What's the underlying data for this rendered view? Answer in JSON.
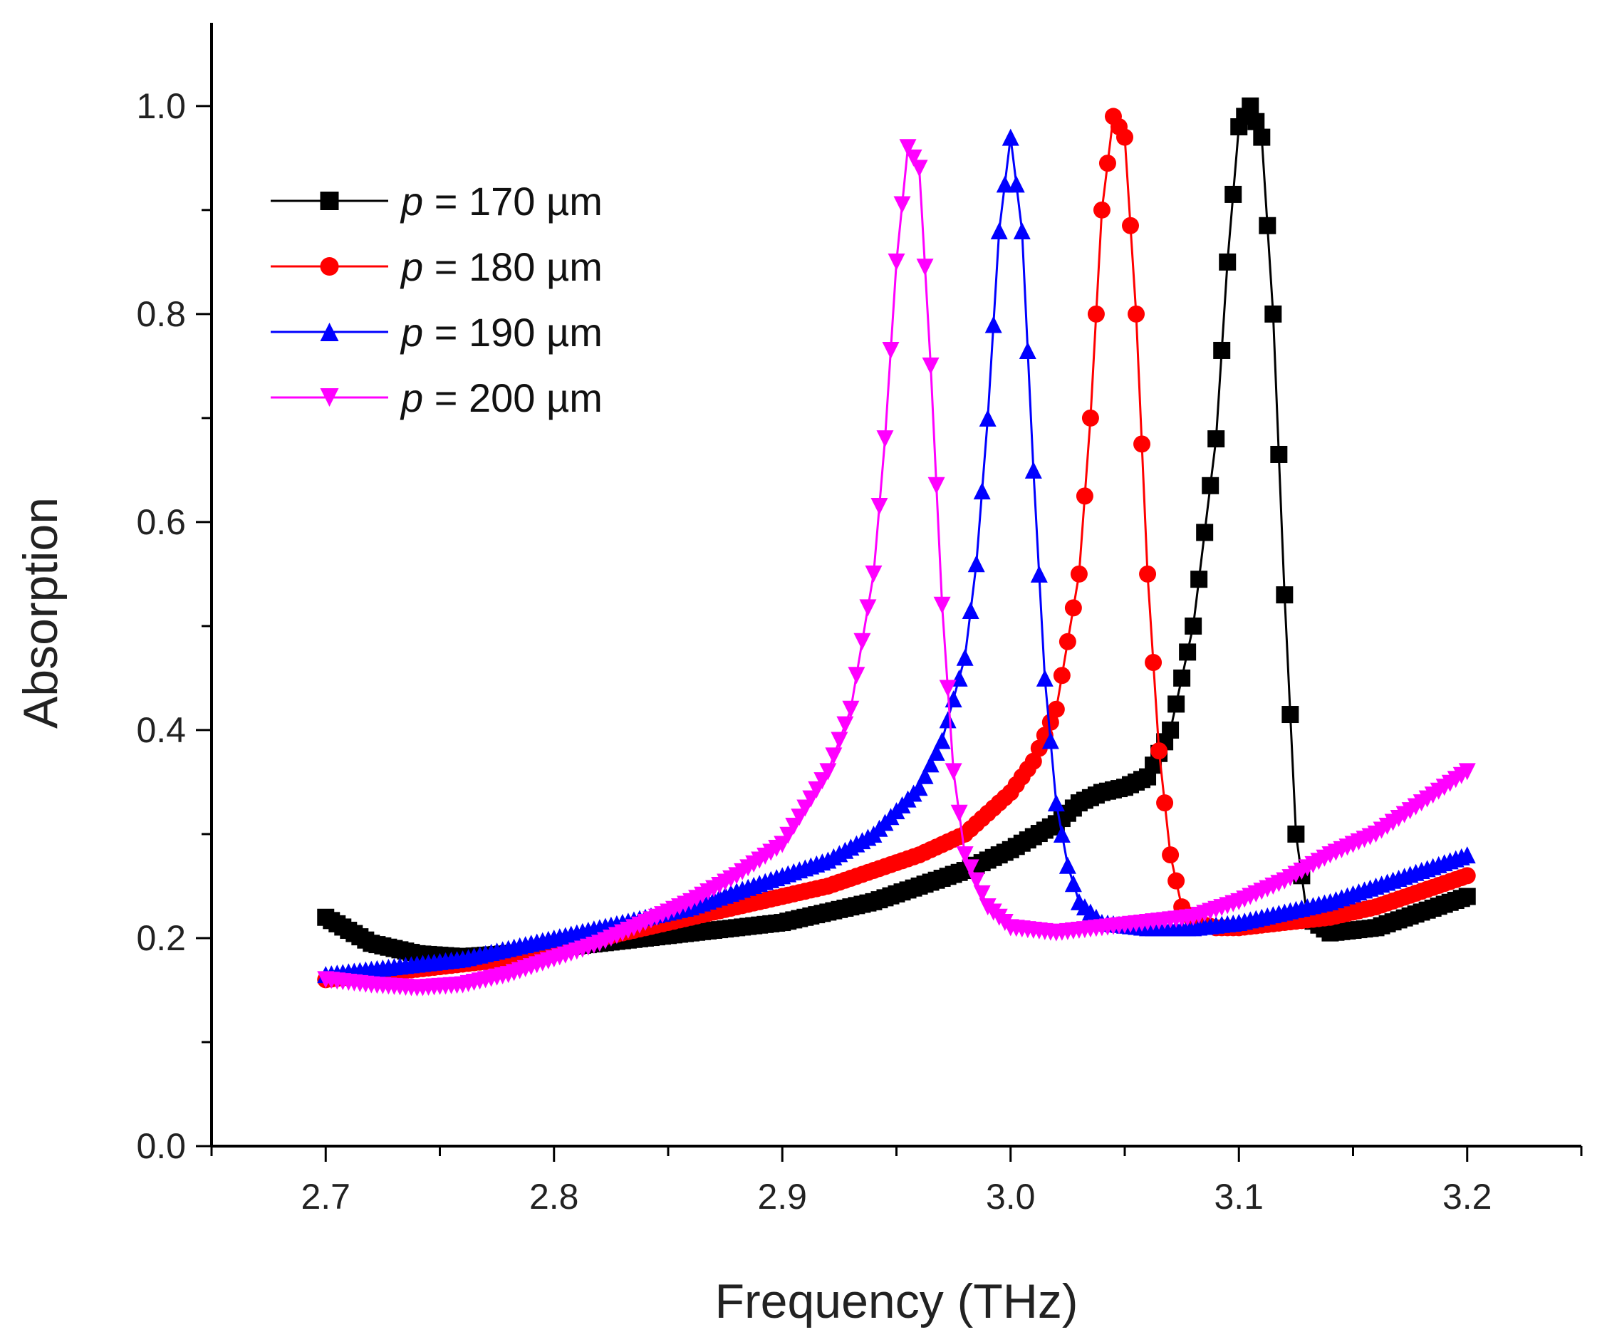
{
  "chart_data": {
    "type": "line",
    "xlabel": "Frequency (THz)",
    "ylabel": "Absorption",
    "xlim": [
      2.65,
      3.25
    ],
    "ylim": [
      0.0,
      1.08
    ],
    "xticks": [
      2.7,
      2.8,
      2.9,
      3.0,
      3.1,
      3.2
    ],
    "xtick_labels": [
      "2.7",
      "2.8",
      "2.9",
      "3.0",
      "3.1",
      "3.2"
    ],
    "yticks": [
      0.0,
      0.2,
      0.4,
      0.6,
      0.8,
      1.0
    ],
    "ytick_labels": [
      "0.0",
      "0.2",
      "0.4",
      "0.6",
      "0.8",
      "1.0"
    ],
    "legend_position": "top-left",
    "grid": false,
    "series": [
      {
        "name": "p = 170 µm",
        "legend_var": "p",
        "legend_rest": "= 170 µm",
        "color": "#000000",
        "marker": "square",
        "x": [
          2.7,
          2.72,
          2.74,
          2.76,
          2.78,
          2.8,
          2.82,
          2.84,
          2.86,
          2.88,
          2.9,
          2.92,
          2.94,
          2.96,
          2.98,
          3.0,
          3.02,
          3.03,
          3.04,
          3.05,
          3.06,
          3.07,
          3.08,
          3.09,
          3.095,
          3.1,
          3.105,
          3.11,
          3.115,
          3.12,
          3.125,
          3.13,
          3.14,
          3.16,
          3.18,
          3.2
        ],
        "y": [
          0.22,
          0.195,
          0.185,
          0.182,
          0.185,
          0.19,
          0.195,
          0.2,
          0.205,
          0.21,
          0.215,
          0.225,
          0.235,
          0.25,
          0.265,
          0.285,
          0.31,
          0.33,
          0.34,
          0.345,
          0.355,
          0.4,
          0.5,
          0.68,
          0.85,
          0.98,
          1.0,
          0.97,
          0.8,
          0.53,
          0.3,
          0.22,
          0.205,
          0.21,
          0.225,
          0.24
        ]
      },
      {
        "name": "p = 180 µm",
        "legend_var": "p",
        "legend_rest": "= 180 µm",
        "color": "#ff0000",
        "marker": "circle",
        "x": [
          2.7,
          2.72,
          2.74,
          2.76,
          2.78,
          2.8,
          2.82,
          2.84,
          2.86,
          2.88,
          2.9,
          2.92,
          2.94,
          2.96,
          2.98,
          3.0,
          3.01,
          3.02,
          3.03,
          3.035,
          3.04,
          3.045,
          3.05,
          3.055,
          3.06,
          3.065,
          3.07,
          3.075,
          3.08,
          3.09,
          3.1,
          3.12,
          3.14,
          3.16,
          3.18,
          3.2
        ],
        "y": [
          0.16,
          0.165,
          0.17,
          0.175,
          0.18,
          0.19,
          0.2,
          0.21,
          0.22,
          0.23,
          0.24,
          0.25,
          0.265,
          0.28,
          0.3,
          0.34,
          0.37,
          0.42,
          0.55,
          0.7,
          0.9,
          0.99,
          0.97,
          0.8,
          0.55,
          0.38,
          0.28,
          0.23,
          0.215,
          0.21,
          0.21,
          0.215,
          0.22,
          0.23,
          0.245,
          0.26
        ]
      },
      {
        "name": "p = 190 µm",
        "legend_var": "p",
        "legend_rest": "= 190 µm",
        "color": "#0000ff",
        "marker": "triangle-up",
        "x": [
          2.7,
          2.72,
          2.74,
          2.76,
          2.78,
          2.8,
          2.82,
          2.84,
          2.86,
          2.88,
          2.9,
          2.92,
          2.94,
          2.96,
          2.97,
          2.98,
          2.985,
          2.99,
          2.995,
          3.0,
          3.005,
          3.01,
          3.015,
          3.02,
          3.025,
          3.03,
          3.04,
          3.06,
          3.08,
          3.1,
          3.12,
          3.14,
          3.16,
          3.18,
          3.2
        ],
        "y": [
          0.165,
          0.17,
          0.175,
          0.18,
          0.19,
          0.2,
          0.21,
          0.22,
          0.23,
          0.245,
          0.26,
          0.275,
          0.3,
          0.345,
          0.39,
          0.47,
          0.56,
          0.7,
          0.88,
          0.97,
          0.88,
          0.65,
          0.45,
          0.33,
          0.27,
          0.235,
          0.215,
          0.21,
          0.21,
          0.215,
          0.225,
          0.235,
          0.25,
          0.265,
          0.28
        ]
      },
      {
        "name": "p = 200 µm",
        "legend_var": "p",
        "legend_rest": "= 200 µm",
        "color": "#ff00ff",
        "marker": "triangle-down",
        "x": [
          2.7,
          2.72,
          2.74,
          2.76,
          2.78,
          2.8,
          2.82,
          2.84,
          2.86,
          2.88,
          2.9,
          2.92,
          2.93,
          2.94,
          2.945,
          2.95,
          2.955,
          2.96,
          2.965,
          2.97,
          2.975,
          2.98,
          2.99,
          3.0,
          3.02,
          3.04,
          3.06,
          3.08,
          3.1,
          3.12,
          3.14,
          3.16,
          3.18,
          3.2
        ],
        "y": [
          0.16,
          0.155,
          0.152,
          0.155,
          0.165,
          0.18,
          0.195,
          0.215,
          0.235,
          0.26,
          0.29,
          0.36,
          0.42,
          0.55,
          0.68,
          0.85,
          0.96,
          0.94,
          0.75,
          0.52,
          0.36,
          0.28,
          0.23,
          0.21,
          0.205,
          0.21,
          0.215,
          0.22,
          0.235,
          0.255,
          0.28,
          0.3,
          0.33,
          0.36
        ]
      }
    ]
  }
}
